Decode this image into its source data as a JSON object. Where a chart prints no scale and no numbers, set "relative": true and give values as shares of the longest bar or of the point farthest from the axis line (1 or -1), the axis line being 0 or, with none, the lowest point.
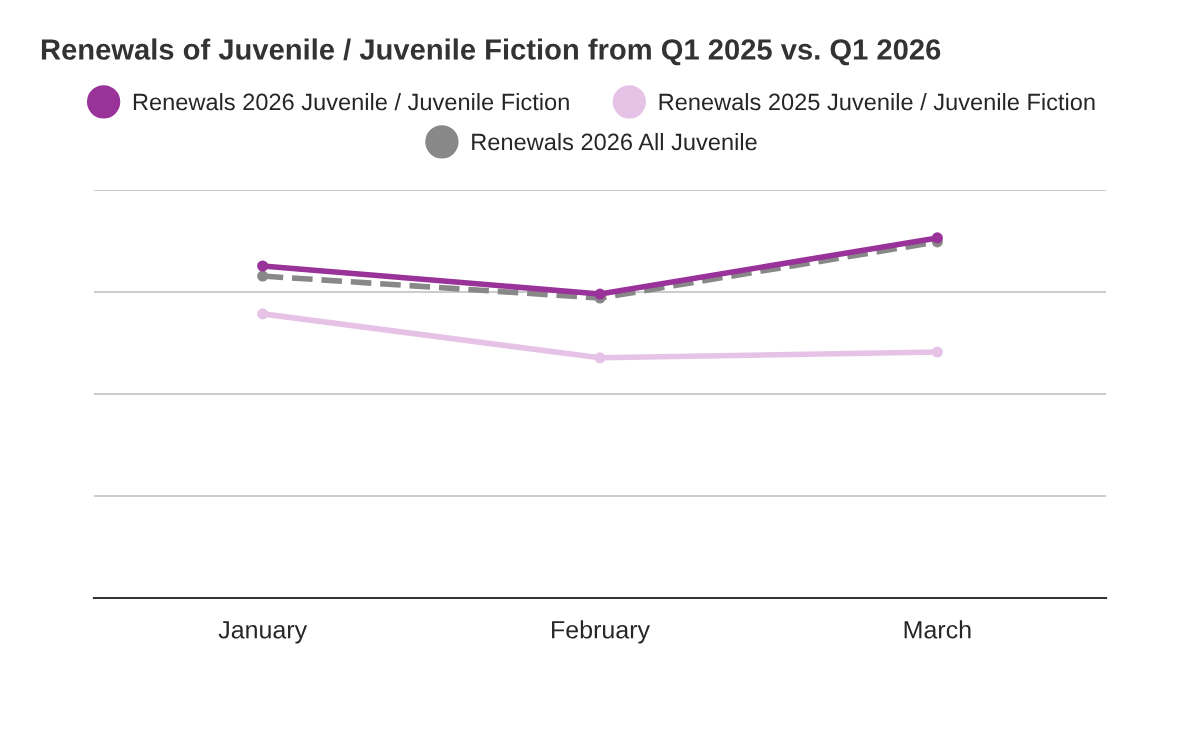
{
  "chart_data": {
    "type": "line",
    "title": "Renewals of Juvenile / Juvenile Fiction from Q1 2025 vs. Q1 2026",
    "categories": [
      "January",
      "February",
      "March"
    ],
    "relative": true,
    "grid": "y",
    "legend": "top",
    "marker": "circle",
    "series": [
      {
        "name": "Renewals 2026 Juvenile / Juvenile Fiction",
        "color": "#993399",
        "values": [
          0.922,
          0.844,
          1
        ]
      },
      {
        "name": "Renewals 2025 Juvenile / Juvenile Fiction",
        "color": "#e6c3e6",
        "values": [
          0.789,
          0.667,
          0.683
        ]
      },
      {
        "name": "Renewals 2026 All Juvenile",
        "color": "#888888",
        "line_style": "dashed",
        "values": [
          0.894,
          0.833,
          0.989
        ]
      }
    ]
  }
}
